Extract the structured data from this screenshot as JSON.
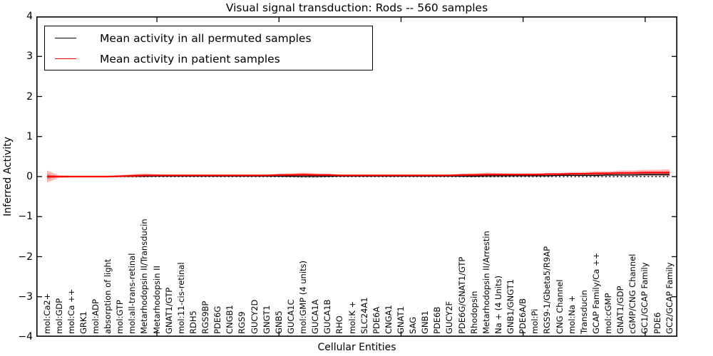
{
  "title": "Visual signal transduction: Rods -- 560 samples",
  "axes": {
    "xlabel": "Cellular Entities",
    "ylabel": "Inferred Activity",
    "ytick_labels": [
      "4",
      "3",
      "2",
      "1",
      "0",
      "−1",
      "−2",
      "−3",
      "−4"
    ],
    "ytick_values": [
      4,
      3,
      2,
      1,
      0,
      -1,
      -2,
      -3,
      -4
    ]
  },
  "legend": {
    "entries": [
      {
        "label": "Mean activity in all permuted samples",
        "color": "#000000"
      },
      {
        "label": "Mean activity in patient samples",
        "color": "#ff0000"
      }
    ]
  },
  "chart_data": {
    "type": "line",
    "title": "Visual signal transduction: Rods -- 560 samples",
    "xlabel": "Cellular Entities",
    "ylabel": "Inferred Activity",
    "ylim": [
      -4,
      4
    ],
    "grid": false,
    "legend_position": "upper left",
    "zero_line": {
      "style": "dotted",
      "color": "#000000",
      "y": 0
    },
    "x_major_tick_indices": [
      9,
      19,
      29,
      39,
      49
    ],
    "categories": [
      "mol:Ca2+",
      "mol:GDP",
      "mol:Ca ++",
      "GRK1",
      "mol:ADP",
      "absorption of light",
      "mol:GTP",
      "mol:all-trans-retinal",
      "Metarhodopsin II/Transducin",
      "Metarhodopsin II",
      "GNAT1/GTP",
      "mol:11-cis-retinal",
      "RDH5",
      "RGS9BP",
      "PDE6G",
      "CNGB1",
      "RGS9",
      "GUCY2D",
      "GNGT1",
      "GNB5",
      "GUCA1C",
      "mol:GMP (4 units)",
      "GUCA1A",
      "GUCA1B",
      "RHO",
      "mol:K +",
      "SLC24A1",
      "PDE6A",
      "CNGA1",
      "GNAT1",
      "SAG",
      "GNB1",
      "PDE6B",
      "GUCY2F",
      "PDE6G/GNAT1/GTP",
      "Rhodopsin",
      "Metarhodopsin II/Arrestin",
      "Na + (4 Units)",
      "GNB1/GNGT1",
      "PDE6A/B",
      "mol:Pi",
      "RGS9-1/Gbeta5/R9AP",
      "CNG Channel",
      "mol:Na +",
      "Transducin",
      "GCAP Family/Ca ++",
      "mol:cGMP",
      "GNAT1/GDP",
      "cGMP/CNG Channel",
      "GC1/GCAP Family",
      "PDE6",
      "GC2/GCAP Family"
    ],
    "series": [
      {
        "name": "Mean activity in all permuted samples",
        "color": "#000000",
        "band_color": "rgba(70,70,70,0.35)",
        "values": [
          0.0,
          0.0,
          0.0,
          0.0,
          0.0,
          0.0,
          0.0,
          0.01,
          0.01,
          0.01,
          0.01,
          0.01,
          0.01,
          0.01,
          0.01,
          0.01,
          0.01,
          0.01,
          0.01,
          0.01,
          0.01,
          0.01,
          0.01,
          0.01,
          0.01,
          0.01,
          0.01,
          0.01,
          0.01,
          0.01,
          0.01,
          0.01,
          0.01,
          0.01,
          0.01,
          0.01,
          0.02,
          0.02,
          0.02,
          0.02,
          0.02,
          0.02,
          0.03,
          0.03,
          0.03,
          0.03,
          0.04,
          0.04,
          0.04,
          0.05,
          0.05,
          0.05
        ],
        "band_halfwidth": [
          0.06,
          0.01,
          0.01,
          0.01,
          0.01,
          0.01,
          0.01,
          0.02,
          0.02,
          0.01,
          0.01,
          0.01,
          0.01,
          0.01,
          0.01,
          0.01,
          0.01,
          0.01,
          0.01,
          0.02,
          0.03,
          0.04,
          0.04,
          0.03,
          0.01,
          0.01,
          0.01,
          0.01,
          0.01,
          0.01,
          0.01,
          0.01,
          0.01,
          0.01,
          0.02,
          0.03,
          0.04,
          0.04,
          0.03,
          0.02,
          0.02,
          0.02,
          0.02,
          0.02,
          0.02,
          0.03,
          0.03,
          0.03,
          0.03,
          0.04,
          0.04,
          0.04
        ]
      },
      {
        "name": "Mean activity in patient samples",
        "color": "#ff0000",
        "band_color": "rgba(255,0,0,0.28)",
        "values": [
          0.0,
          0.0,
          0.0,
          0.0,
          0.0,
          0.0,
          0.01,
          0.02,
          0.03,
          0.03,
          0.03,
          0.03,
          0.03,
          0.03,
          0.03,
          0.03,
          0.03,
          0.03,
          0.03,
          0.04,
          0.04,
          0.05,
          0.04,
          0.04,
          0.03,
          0.03,
          0.03,
          0.03,
          0.03,
          0.03,
          0.03,
          0.03,
          0.03,
          0.03,
          0.04,
          0.04,
          0.05,
          0.05,
          0.05,
          0.05,
          0.05,
          0.06,
          0.06,
          0.07,
          0.07,
          0.08,
          0.08,
          0.09,
          0.09,
          0.1,
          0.1,
          0.1
        ],
        "band_halfwidth": [
          0.15,
          0.03,
          0.02,
          0.02,
          0.02,
          0.02,
          0.02,
          0.04,
          0.05,
          0.03,
          0.02,
          0.02,
          0.02,
          0.02,
          0.02,
          0.02,
          0.02,
          0.02,
          0.02,
          0.03,
          0.04,
          0.05,
          0.04,
          0.03,
          0.02,
          0.02,
          0.02,
          0.02,
          0.02,
          0.02,
          0.02,
          0.02,
          0.02,
          0.02,
          0.03,
          0.04,
          0.05,
          0.04,
          0.03,
          0.03,
          0.03,
          0.03,
          0.03,
          0.04,
          0.04,
          0.05,
          0.05,
          0.06,
          0.06,
          0.07,
          0.07,
          0.08
        ]
      }
    ]
  }
}
